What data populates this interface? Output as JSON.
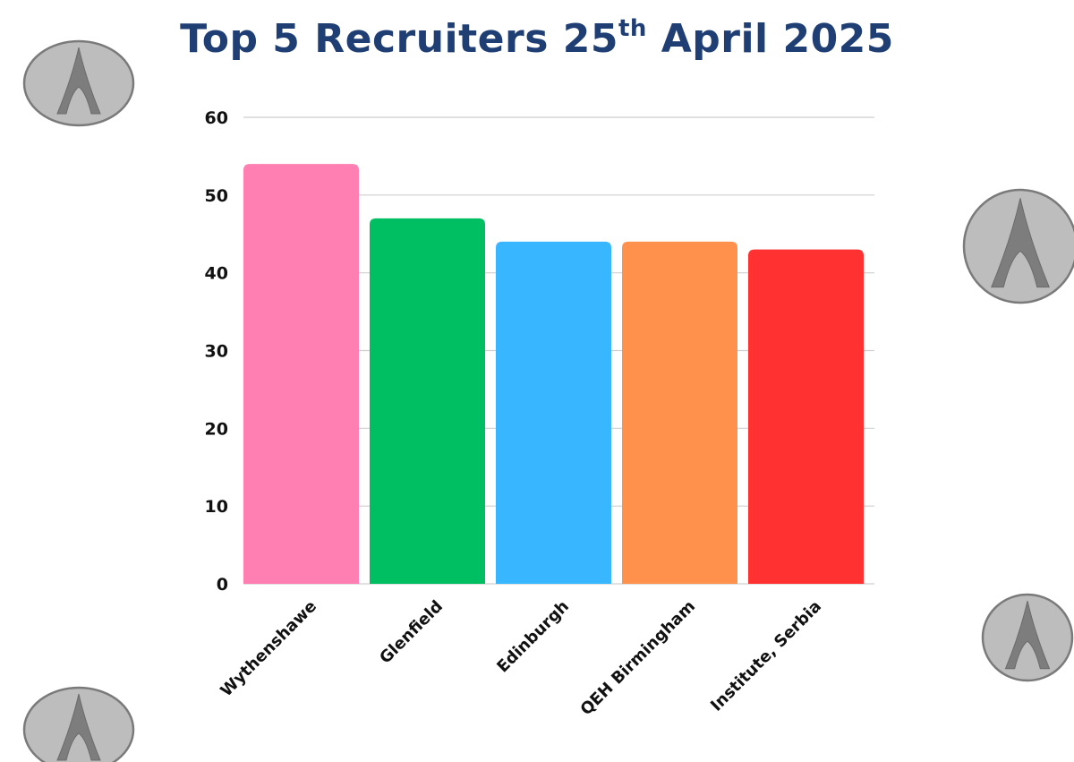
{
  "title": {
    "text_before": "Top 5 Recruiters 25",
    "superscript": "th",
    "text_after": " April 2025"
  },
  "logo": {
    "name": "A emblem",
    "fill": "#bdbdbd",
    "stroke": "#7a7a7a"
  },
  "chart_data": {
    "type": "bar",
    "title": "Top 5 Recruiters 25th April 2025",
    "xlabel": "",
    "ylabel": "",
    "categories": [
      "Wythenshawe",
      "Glenfield",
      "Edinburgh",
      "QEH Birmingham",
      "Institute, Serbia"
    ],
    "values": [
      54,
      47,
      44,
      44,
      43
    ],
    "colors": [
      "#ff7fb3",
      "#00bf63",
      "#38b6ff",
      "#ff914d",
      "#ff3131"
    ],
    "ylim": [
      0,
      60
    ],
    "yticks": [
      0,
      10,
      20,
      30,
      40,
      50,
      60
    ],
    "grid": true,
    "legend": "none"
  }
}
